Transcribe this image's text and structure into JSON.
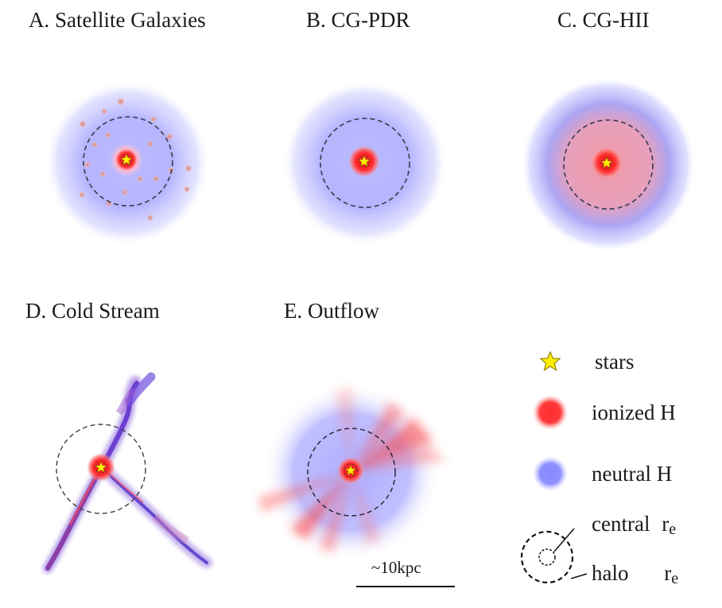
{
  "panels": [
    {
      "id": "A",
      "title": "A. Satellite Galaxies"
    },
    {
      "id": "B",
      "title": "B. CG-PDR"
    },
    {
      "id": "C",
      "title": "C. CG-HII"
    },
    {
      "id": "D",
      "title": "D. Cold Stream"
    },
    {
      "id": "E",
      "title": "E. Outflow"
    }
  ],
  "legend": {
    "stars": "stars",
    "ionized": "ionized H",
    "neutral": "neutral H",
    "central": "central",
    "halo": "halo",
    "r_main": "r",
    "r_sub": "e"
  },
  "scale_bar": {
    "label": "~10kpc"
  },
  "colors": {
    "ionized": "#ff3b3b",
    "neutral": "#8a8cff",
    "star": "#ffee00",
    "stream": "#6a3fd1",
    "satellite": "#e0a0a0"
  }
}
